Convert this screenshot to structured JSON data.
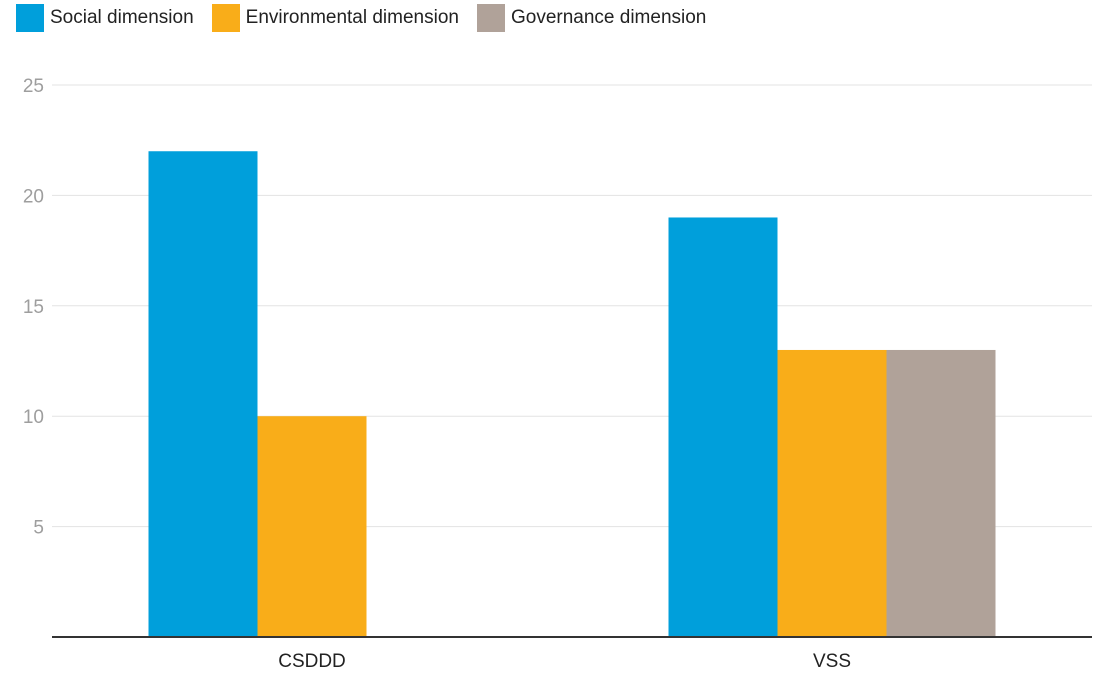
{
  "chart_data": {
    "type": "bar",
    "title": "",
    "xlabel": "",
    "ylabel": "",
    "categories": [
      "CSDDD",
      "VSS"
    ],
    "series": [
      {
        "name": "Social dimension",
        "color": "#009fdb",
        "values": [
          22,
          19
        ]
      },
      {
        "name": "Environmental dimension",
        "color": "#f9ad19",
        "values": [
          10,
          13
        ]
      },
      {
        "name": "Governance dimension",
        "color": "#b0a299",
        "values": [
          0,
          13
        ]
      }
    ],
    "ylim": [
      0,
      25
    ],
    "yticks": [
      5,
      10,
      15,
      20,
      25
    ],
    "grid": true,
    "legend_position": "top-left"
  }
}
